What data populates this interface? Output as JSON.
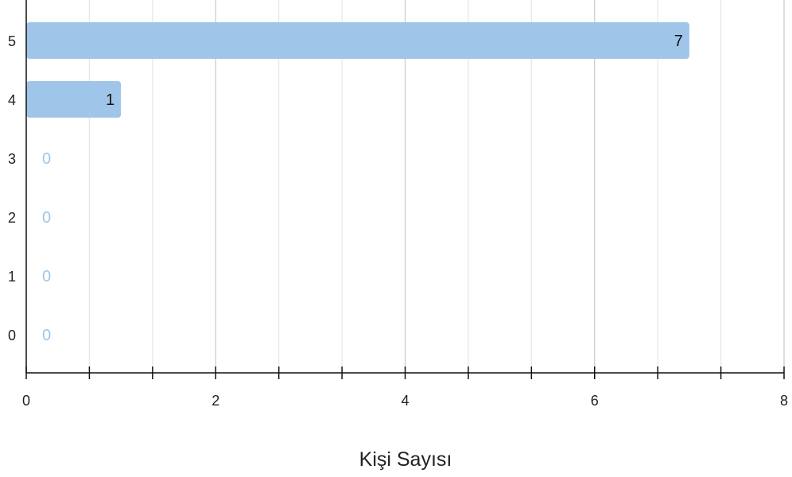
{
  "chart_data": {
    "type": "bar",
    "orientation": "horizontal",
    "categories": [
      "5",
      "4",
      "3",
      "2",
      "1",
      "0"
    ],
    "values": [
      7,
      1,
      0,
      0,
      0,
      0
    ],
    "title": "",
    "xlabel": "Kişi Sayısı",
    "ylabel": "",
    "xlim": [
      0,
      8
    ],
    "x_ticks": [
      "0",
      "2",
      "4",
      "6",
      "8"
    ],
    "grid": true,
    "legend": "none"
  },
  "colors": {
    "bar": "#9fc5e8",
    "zero_label": "#9fc5e8",
    "label": "#111111",
    "axis": "#111111",
    "grid_major": "#c8c8c8",
    "grid_minor": "#e6e6e6"
  }
}
